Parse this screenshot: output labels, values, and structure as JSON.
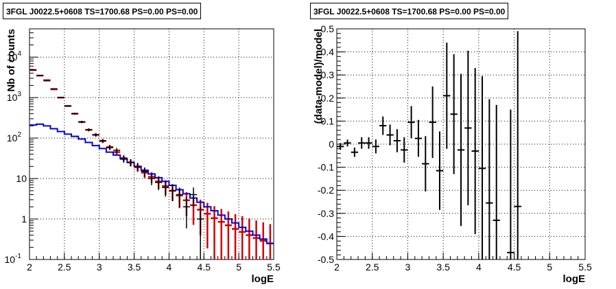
{
  "chart_data": [
    {
      "type": "scatter",
      "title": "3FGL J0022.5+0608 TS=1700.68 PS=0.00 PS=0.00",
      "xlabel": "logE",
      "ylabel": "Nb of counts",
      "xlim": [
        2,
        5.5
      ],
      "ylim": [
        0.1,
        50000
      ],
      "yscale": "log",
      "grid": true,
      "x_ticks": [
        "2",
        "2.5",
        "3",
        "3.5",
        "4",
        "4.5",
        "5",
        "5.5"
      ],
      "y_ticks": [
        {
          "value": 0.1,
          "label": "10",
          "exp": "-1"
        },
        {
          "value": 1,
          "label": "1",
          "exp": ""
        },
        {
          "value": 10,
          "label": "10",
          "exp": ""
        },
        {
          "value": 100,
          "label": "10",
          "exp": "2"
        },
        {
          "value": 1000,
          "label": "10",
          "exp": "3"
        },
        {
          "value": 10000,
          "label": "10",
          "exp": "4"
        }
      ],
      "bin_width": 0.1,
      "x": [
        2.05,
        2.15,
        2.25,
        2.35,
        2.45,
        2.55,
        2.65,
        2.75,
        2.85,
        2.95,
        3.05,
        3.15,
        3.25,
        3.35,
        3.45,
        3.55,
        3.65,
        3.75,
        3.85,
        3.95,
        4.05,
        4.15,
        4.25,
        4.35,
        4.45,
        4.55,
        4.65,
        4.75,
        4.85,
        4.95,
        5.05,
        5.15,
        5.25,
        5.35,
        5.45
      ],
      "series": [
        {
          "role": "model",
          "color": "#d00000",
          "values": [
            4800,
            3500,
            2700,
            1600,
            1000,
            620,
            400,
            250,
            160,
            120,
            85,
            60,
            45,
            32,
            25,
            19,
            14,
            11,
            8.5,
            6.5,
            5,
            3.8,
            2.9,
            2.2,
            1.7,
            1.35,
            1.05,
            0.85,
            0.7,
            0.57,
            0.48,
            0.4,
            0.34,
            0.29,
            0.25
          ]
        },
        {
          "role": "data",
          "color": "#000000",
          "values": [
            4800,
            3500,
            2600,
            1650,
            1000,
            620,
            400,
            250,
            160,
            120,
            85,
            58,
            50,
            30,
            25,
            20,
            15,
            10,
            8,
            6,
            5,
            4,
            2,
            4,
            1,
            null,
            null,
            null,
            null,
            null,
            null,
            null,
            null,
            null,
            null
          ]
        },
        {
          "role": "source",
          "color": "#0000dd",
          "values": [
            210,
            220,
            200,
            170,
            145,
            125,
            110,
            95,
            78,
            65,
            55,
            45,
            38,
            31,
            25,
            20,
            16,
            13,
            10.5,
            8.5,
            6.8,
            5.3,
            4.2,
            3.3,
            2.6,
            2.0,
            1.6,
            1.25,
            1.0,
            0.8,
            0.62,
            0.5,
            0.4,
            0.32,
            0.25
          ]
        }
      ]
    },
    {
      "type": "scatter",
      "title": "3FGL J0022.5+0608 TS=1700.68 PS=0.00 PS=0.00",
      "xlabel": "logE",
      "ylabel": "(data-model)/model",
      "xlim": [
        2,
        5.5
      ],
      "ylim": [
        -0.5,
        0.5
      ],
      "grid": true,
      "x_ticks": [
        "2",
        "2.5",
        "3",
        "3.5",
        "4",
        "4.5",
        "5",
        "5.5"
      ],
      "y_ticks": [
        "-0.5",
        "-0.4",
        "-0.3",
        "-0.2",
        "-0.1",
        "0",
        "0.1",
        "0.2",
        "0.3",
        "0.4",
        "0.5"
      ],
      "bin_width": 0.1,
      "x": [
        2.05,
        2.15,
        2.25,
        2.35,
        2.45,
        2.55,
        2.65,
        2.75,
        2.85,
        2.95,
        3.05,
        3.15,
        3.25,
        3.35,
        3.45,
        3.55,
        3.65,
        3.75,
        3.85,
        3.95,
        4.05,
        4.15,
        4.25,
        4.45,
        4.55
      ],
      "y": [
        -0.01,
        0.005,
        -0.035,
        0.005,
        0.005,
        -0.01,
        0.08,
        0.04,
        0.015,
        -0.025,
        0.095,
        0.025,
        -0.085,
        0.095,
        -0.115,
        0.21,
        0.13,
        -0.025,
        0.07,
        -0.03,
        -0.105,
        -0.255,
        -0.33,
        -0.47,
        -0.27
      ],
      "err": [
        0.015,
        0.015,
        0.02,
        0.025,
        0.025,
        0.03,
        0.04,
        0.045,
        0.05,
        0.055,
        0.07,
        0.08,
        0.12,
        0.155,
        0.17,
        0.23,
        0.26,
        0.33,
        0.335,
        0.36,
        0.4,
        0.45,
        0.5,
        0.62,
        0.76
      ]
    }
  ]
}
